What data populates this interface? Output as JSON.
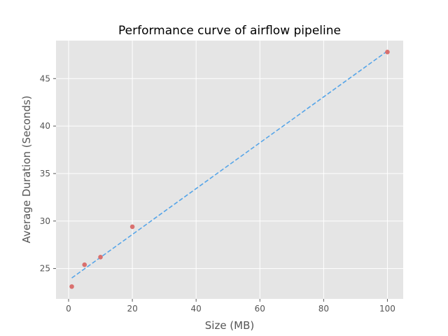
{
  "chart_data": {
    "type": "scatter",
    "title": "Performance curve of airflow pipeline",
    "xlabel": "Size (MB)",
    "ylabel": "Average Duration (Seconds)",
    "xlim": [
      -3.95,
      104.95
    ],
    "ylim": [
      21.8,
      49.0
    ],
    "xticks": [
      0,
      20,
      40,
      60,
      80,
      100
    ],
    "yticks": [
      25,
      30,
      35,
      40,
      45
    ],
    "grid": true,
    "points": [
      {
        "x": 1,
        "y": 23.1
      },
      {
        "x": 5,
        "y": 25.4
      },
      {
        "x": 10,
        "y": 26.2
      },
      {
        "x": 20,
        "y": 29.4
      },
      {
        "x": 100,
        "y": 47.8
      }
    ],
    "fit_line": {
      "x": [
        1,
        100
      ],
      "y": [
        24.0,
        47.9
      ]
    },
    "colors": {
      "background": "#e5e5e5",
      "grid": "#ffffff",
      "points": "#d9706e",
      "fit_line": "#56a5e8"
    }
  }
}
